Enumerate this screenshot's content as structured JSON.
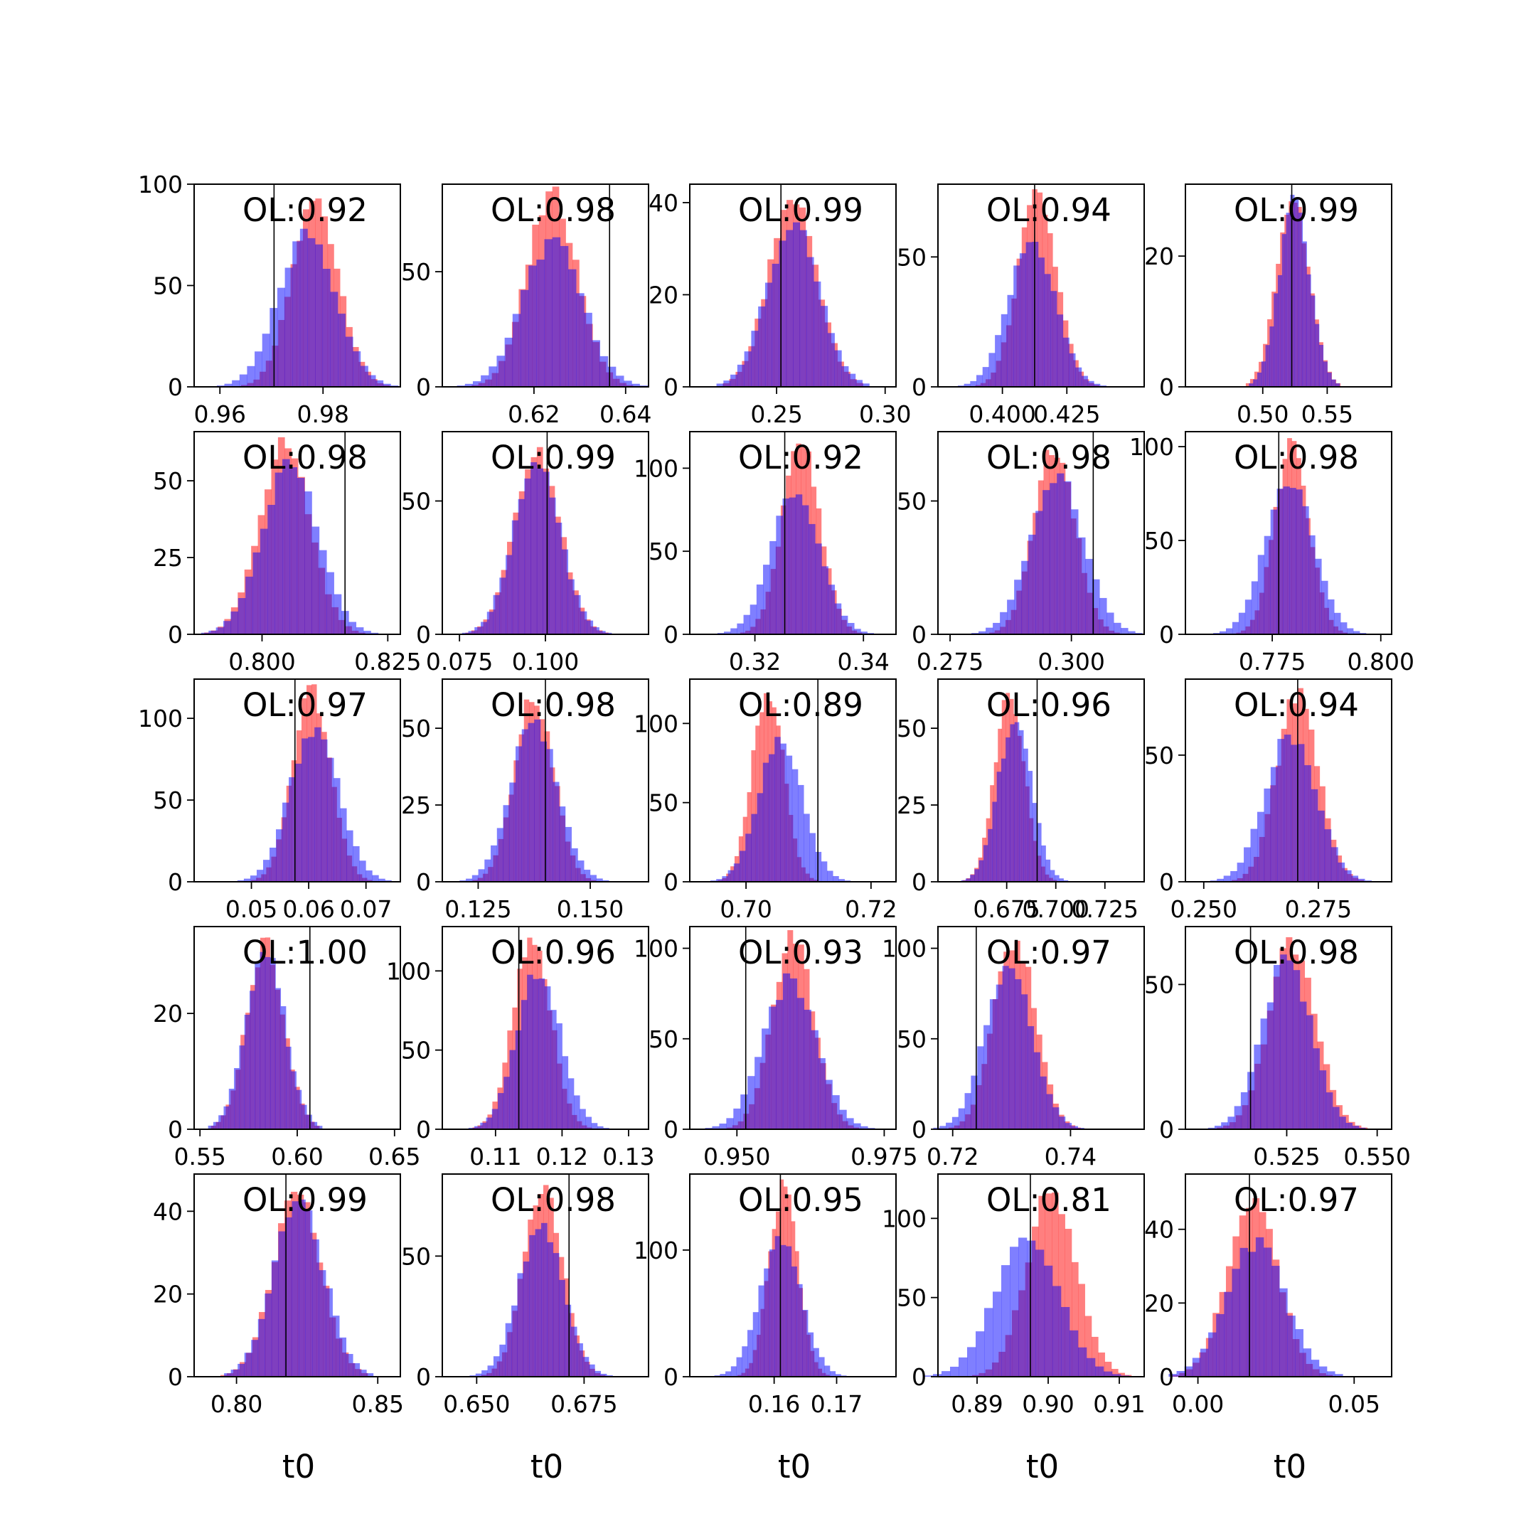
{
  "style": {
    "red_color": "#ff0000",
    "blue_color": "#0000ff",
    "bar_opacity": 0.5,
    "truth_line_color": "#000000",
    "frame_color": "#000000",
    "background": "#ffffff"
  },
  "chart_data": {
    "type": "histogram-grid",
    "rows": 5,
    "cols": 5,
    "column_xlabels": [
      "t0",
      "t0",
      "t0",
      "t0",
      "t0"
    ],
    "panels": [
      {
        "label": "OL:0.92",
        "xlim": [
          0.955,
          0.995
        ],
        "ylim": [
          0,
          100
        ],
        "xticks": [
          0.96,
          0.98
        ],
        "xtick_labels": [
          "0.96",
          "0.98"
        ],
        "yticks": [
          0,
          50,
          100
        ],
        "ytick_labels": [
          "0",
          "50",
          "100"
        ],
        "truth": 0.9705,
        "red": {
          "mean": 0.9785,
          "sd": 0.0045,
          "peak": 92
        },
        "blue": {
          "mean": 0.977,
          "sd": 0.0055,
          "peak": 76
        }
      },
      {
        "label": "OL:0.98",
        "xlim": [
          0.6,
          0.645
        ],
        "ylim": [
          0,
          88
        ],
        "xticks": [
          0.62,
          0.64
        ],
        "xtick_labels": [
          "0.62",
          "0.64"
        ],
        "yticks": [
          0,
          50
        ],
        "ytick_labels": [
          "0",
          "50"
        ],
        "truth": 0.6365,
        "red": {
          "mean": 0.624,
          "sd": 0.0055,
          "peak": 83
        },
        "blue": {
          "mean": 0.624,
          "sd": 0.0065,
          "peak": 63
        }
      },
      {
        "label": "OL:0.99",
        "xlim": [
          0.21,
          0.305
        ],
        "ylim": [
          0,
          44
        ],
        "xticks": [
          0.25,
          0.3
        ],
        "xtick_labels": [
          "0.25",
          "0.30"
        ],
        "yticks": [
          0,
          20,
          40
        ],
        "ytick_labels": [
          "0",
          "20",
          "40"
        ],
        "truth": 0.252,
        "red": {
          "mean": 0.2575,
          "sd": 0.011,
          "peak": 41
        },
        "blue": {
          "mean": 0.2575,
          "sd": 0.012,
          "peak": 35
        }
      },
      {
        "label": "OL:0.94",
        "xlim": [
          0.375,
          0.455
        ],
        "ylim": [
          0,
          78
        ],
        "xticks": [
          0.4,
          0.425
        ],
        "xtick_labels": [
          "0.400",
          "0.425"
        ],
        "yticks": [
          0,
          50
        ],
        "ytick_labels": [
          "0",
          "50"
        ],
        "truth": 0.4125,
        "red": {
          "mean": 0.4135,
          "sd": 0.0075,
          "peak": 73
        },
        "blue": {
          "mean": 0.4115,
          "sd": 0.009,
          "peak": 56
        }
      },
      {
        "label": "OL:0.99",
        "xlim": [
          0.44,
          0.6
        ],
        "ylim": [
          0,
          31
        ],
        "xticks": [
          0.5,
          0.55
        ],
        "xtick_labels": [
          "0.50",
          "0.55"
        ],
        "yticks": [
          0,
          20
        ],
        "ytick_labels": [
          "0",
          "20"
        ],
        "truth": 0.5225,
        "red": {
          "mean": 0.5235,
          "sd": 0.0125,
          "peak": 29
        },
        "blue": {
          "mean": 0.5245,
          "sd": 0.012,
          "peak": 28
        }
      },
      {
        "label": "OL:0.98",
        "xlim": [
          0.7865,
          0.8275
        ],
        "ylim": [
          0,
          66
        ],
        "xticks": [
          0.8,
          0.825
        ],
        "xtick_labels": [
          "0.800",
          "0.825"
        ],
        "yticks": [
          0,
          25,
          50
        ],
        "ytick_labels": [
          "0",
          "25",
          "50"
        ],
        "truth": 0.8165,
        "red": {
          "mean": 0.8045,
          "sd": 0.005,
          "peak": 62
        },
        "blue": {
          "mean": 0.8055,
          "sd": 0.0055,
          "peak": 56
        }
      },
      {
        "label": "OL:0.99",
        "xlim": [
          0.07,
          0.13
        ],
        "ylim": [
          0,
          76
        ],
        "xticks": [
          0.075,
          0.1
        ],
        "xtick_labels": [
          "0.075",
          "0.100"
        ],
        "yticks": [
          0,
          50
        ],
        "ytick_labels": [
          "0",
          "50"
        ],
        "truth": 0.1005,
        "red": {
          "mean": 0.0975,
          "sd": 0.0065,
          "peak": 71
        },
        "blue": {
          "mean": 0.0975,
          "sd": 0.0068,
          "peak": 64
        }
      },
      {
        "label": "OL:0.92",
        "xlim": [
          0.308,
          0.346
        ],
        "ylim": [
          0,
          122
        ],
        "xticks": [
          0.32,
          0.34
        ],
        "xtick_labels": [
          "0.32",
          "0.34"
        ],
        "yticks": [
          0,
          50,
          100
        ],
        "ytick_labels": [
          "0",
          "50",
          "100"
        ],
        "truth": 0.3255,
        "red": {
          "mean": 0.3285,
          "sd": 0.0035,
          "peak": 115
        },
        "blue": {
          "mean": 0.3275,
          "sd": 0.0045,
          "peak": 85
        }
      },
      {
        "label": "OL:0.98",
        "xlim": [
          0.2725,
          0.315
        ],
        "ylim": [
          0,
          76
        ],
        "xticks": [
          0.275,
          0.3
        ],
        "xtick_labels": [
          "0.275",
          "0.300"
        ],
        "yticks": [
          0,
          50
        ],
        "ytick_labels": [
          "0",
          "50"
        ],
        "truth": 0.3045,
        "red": {
          "mean": 0.2965,
          "sd": 0.0042,
          "peak": 71
        },
        "blue": {
          "mean": 0.297,
          "sd": 0.0055,
          "peak": 59
        }
      },
      {
        "label": "OL:0.98",
        "xlim": [
          0.755,
          0.8025
        ],
        "ylim": [
          0,
          108
        ],
        "xticks": [
          0.775,
          0.8
        ],
        "xtick_labels": [
          "0.775",
          "0.800"
        ],
        "yticks": [
          0,
          50,
          100
        ],
        "ytick_labels": [
          "0",
          "50",
          "100"
        ],
        "truth": 0.7765,
        "red": {
          "mean": 0.7795,
          "sd": 0.004,
          "peak": 100
        },
        "blue": {
          "mean": 0.779,
          "sd": 0.0055,
          "peak": 82
        }
      },
      {
        "label": "OL:0.97",
        "xlim": [
          0.04,
          0.076
        ],
        "ylim": [
          0,
          124
        ],
        "xticks": [
          0.05,
          0.06,
          0.07
        ],
        "xtick_labels": [
          "0.05",
          "0.06",
          "0.07"
        ],
        "yticks": [
          0,
          50,
          100
        ],
        "ytick_labels": [
          "0",
          "50",
          "100"
        ],
        "truth": 0.0576,
        "red": {
          "mean": 0.0605,
          "sd": 0.0033,
          "peak": 118
        },
        "blue": {
          "mean": 0.061,
          "sd": 0.0042,
          "peak": 95
        }
      },
      {
        "label": "OL:0.98",
        "xlim": [
          0.117,
          0.163
        ],
        "ylim": [
          0,
          66
        ],
        "xticks": [
          0.125,
          0.15
        ],
        "xtick_labels": [
          "0.125",
          "0.150"
        ],
        "yticks": [
          0,
          25,
          50
        ],
        "ytick_labels": [
          "0",
          "25",
          "50"
        ],
        "truth": 0.14,
        "red": {
          "mean": 0.1375,
          "sd": 0.0043,
          "peak": 61
        },
        "blue": {
          "mean": 0.1375,
          "sd": 0.0052,
          "peak": 52
        }
      },
      {
        "label": "OL:0.89",
        "xlim": [
          0.691,
          0.724
        ],
        "ylim": [
          0,
          128
        ],
        "xticks": [
          0.7,
          0.72
        ],
        "xtick_labels": [
          "0.70",
          "0.72"
        ],
        "yticks": [
          0,
          50,
          100
        ],
        "ytick_labels": [
          "0",
          "50",
          "100"
        ],
        "truth": 0.7115,
        "red": {
          "mean": 0.7035,
          "sd": 0.0025,
          "peak": 122
        },
        "blue": {
          "mean": 0.7055,
          "sd": 0.0035,
          "peak": 90
        }
      },
      {
        "label": "OL:0.96",
        "xlim": [
          0.64,
          0.745
        ],
        "ylim": [
          0,
          66
        ],
        "xticks": [
          0.675,
          0.7,
          0.725
        ],
        "xtick_labels": [
          "0.675",
          "0.700",
          "0.725"
        ],
        "yticks": [
          0,
          25,
          50
        ],
        "ytick_labels": [
          "0",
          "25",
          "50"
        ],
        "truth": 0.6905,
        "red": {
          "mean": 0.6765,
          "sd": 0.0075,
          "peak": 62
        },
        "blue": {
          "mean": 0.679,
          "sd": 0.0085,
          "peak": 53
        }
      },
      {
        "label": "OL:0.94",
        "xlim": [
          0.246,
          0.291
        ],
        "ylim": [
          0,
          80
        ],
        "xticks": [
          0.25,
          0.275
        ],
        "xtick_labels": [
          "0.250",
          "0.275"
        ],
        "yticks": [
          0,
          50
        ],
        "ytick_labels": [
          "0",
          "50"
        ],
        "truth": 0.2705,
        "red": {
          "mean": 0.2705,
          "sd": 0.0045,
          "peak": 75
        },
        "blue": {
          "mean": 0.269,
          "sd": 0.0055,
          "peak": 58
        }
      },
      {
        "label": "OL:1.00",
        "xlim": [
          0.547,
          0.653
        ],
        "ylim": [
          0,
          35
        ],
        "xticks": [
          0.55,
          0.6,
          0.65
        ],
        "xtick_labels": [
          "0.55",
          "0.60",
          "0.65"
        ],
        "yticks": [
          0,
          20
        ],
        "ytick_labels": [
          "0",
          "20"
        ],
        "truth": 0.6065,
        "red": {
          "mean": 0.5835,
          "sd": 0.0095,
          "peak": 32
        },
        "blue": {
          "mean": 0.5835,
          "sd": 0.01,
          "peak": 31
        }
      },
      {
        "label": "OL:0.96",
        "xlim": [
          0.102,
          0.133
        ],
        "ylim": [
          0,
          128
        ],
        "xticks": [
          0.11,
          0.12,
          0.13
        ],
        "xtick_labels": [
          "0.11",
          "0.12",
          "0.13"
        ],
        "yticks": [
          0,
          50,
          100
        ],
        "ytick_labels": [
          "0",
          "50",
          "100"
        ],
        "truth": 0.1135,
        "red": {
          "mean": 0.1155,
          "sd": 0.0028,
          "peak": 122
        },
        "blue": {
          "mean": 0.1165,
          "sd": 0.0033,
          "peak": 100
        }
      },
      {
        "label": "OL:0.93",
        "xlim": [
          0.942,
          0.977
        ],
        "ylim": [
          0,
          112
        ],
        "xticks": [
          0.95,
          0.975
        ],
        "xtick_labels": [
          "0.950",
          "0.975"
        ],
        "yticks": [
          0,
          50,
          100
        ],
        "ytick_labels": [
          "0",
          "50",
          "100"
        ],
        "truth": 0.9515,
        "red": {
          "mean": 0.9595,
          "sd": 0.0035,
          "peak": 106
        },
        "blue": {
          "mean": 0.959,
          "sd": 0.0045,
          "peak": 82
        }
      },
      {
        "label": "OL:0.97",
        "xlim": [
          0.7175,
          0.7525
        ],
        "ylim": [
          0,
          112
        ],
        "xticks": [
          0.72,
          0.74
        ],
        "xtick_labels": [
          "0.72",
          "0.74"
        ],
        "yticks": [
          0,
          50,
          100
        ],
        "ytick_labels": [
          "0",
          "50",
          "100"
        ],
        "truth": 0.724,
        "red": {
          "mean": 0.7305,
          "sd": 0.0035,
          "peak": 106
        },
        "blue": {
          "mean": 0.7295,
          "sd": 0.004,
          "peak": 90
        }
      },
      {
        "label": "OL:0.98",
        "xlim": [
          0.497,
          0.554
        ],
        "ylim": [
          0,
          70
        ],
        "xticks": [
          0.525,
          0.55
        ],
        "xtick_labels": [
          "0.525",
          "0.550"
        ],
        "yticks": [
          0,
          50
        ],
        "ytick_labels": [
          "0",
          "50"
        ],
        "truth": 0.515,
        "red": {
          "mean": 0.5265,
          "sd": 0.0065,
          "peak": 64
        },
        "blue": {
          "mean": 0.525,
          "sd": 0.0068,
          "peak": 58
        }
      },
      {
        "label": "OL:0.99",
        "xlim": [
          0.785,
          0.858
        ],
        "ylim": [
          0,
          49
        ],
        "xticks": [
          0.8,
          0.85
        ],
        "xtick_labels": [
          "0.80",
          "0.85"
        ],
        "yticks": [
          0,
          20,
          40
        ],
        "ytick_labels": [
          "0",
          "20",
          "40"
        ],
        "truth": 0.8175,
        "red": {
          "mean": 0.8215,
          "sd": 0.0085,
          "peak": 44
        },
        "blue": {
          "mean": 0.822,
          "sd": 0.009,
          "peak": 42
        }
      },
      {
        "label": "OL:0.98",
        "xlim": [
          0.642,
          0.69
        ],
        "ylim": [
          0,
          84
        ],
        "xticks": [
          0.65,
          0.675
        ],
        "xtick_labels": [
          "0.650",
          "0.675"
        ],
        "yticks": [
          0,
          50
        ],
        "ytick_labels": [
          "0",
          "50"
        ],
        "truth": 0.6715,
        "red": {
          "mean": 0.6655,
          "sd": 0.0045,
          "peak": 79
        },
        "blue": {
          "mean": 0.665,
          "sd": 0.0052,
          "peak": 63
        }
      },
      {
        "label": "OL:0.95",
        "xlim": [
          0.1465,
          0.1795
        ],
        "ylim": [
          0,
          160
        ],
        "xticks": [
          0.16,
          0.17
        ],
        "xtick_labels": [
          "0.16",
          "0.17"
        ],
        "yticks": [
          0,
          100
        ],
        "ytick_labels": [
          "0",
          "100"
        ],
        "truth": 0.161,
        "red": {
          "mean": 0.1615,
          "sd": 0.0023,
          "peak": 150
        },
        "blue": {
          "mean": 0.161,
          "sd": 0.0033,
          "peak": 108
        }
      },
      {
        "label": "OL:0.81",
        "xlim": [
          0.8845,
          0.9135
        ],
        "ylim": [
          0,
          128
        ],
        "xticks": [
          0.89,
          0.9,
          0.91
        ],
        "xtick_labels": [
          "0.89",
          "0.90",
          "0.91"
        ],
        "yticks": [
          0,
          50,
          100
        ],
        "ytick_labels": [
          "0",
          "50",
          "100"
        ],
        "truth": 0.8975,
        "red": {
          "mean": 0.9005,
          "sd": 0.0035,
          "peak": 118
        },
        "blue": {
          "mean": 0.897,
          "sd": 0.0045,
          "peak": 86
        }
      },
      {
        "label": "OL:0.97",
        "xlim": [
          -0.004,
          0.062
        ],
        "ylim": [
          0,
          55
        ],
        "xticks": [
          0.0,
          0.05
        ],
        "xtick_labels": [
          "0.00",
          "0.05"
        ],
        "yticks": [
          0,
          20,
          40
        ],
        "ytick_labels": [
          "0",
          "20",
          "40"
        ],
        "truth": 0.0165,
        "red": {
          "mean": 0.0175,
          "sd": 0.008,
          "peak": 48
        },
        "blue": {
          "mean": 0.0185,
          "sd": 0.0095,
          "peak": 36
        }
      }
    ]
  }
}
